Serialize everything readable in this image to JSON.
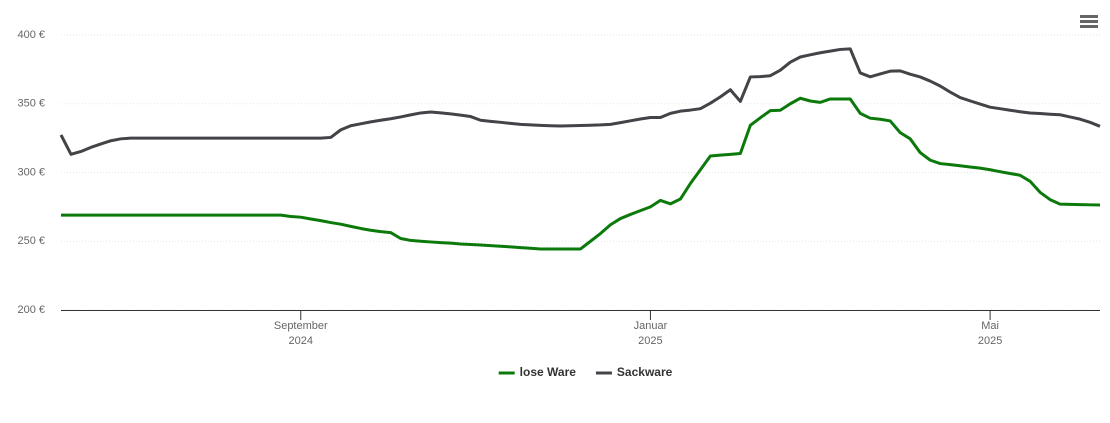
{
  "chart_data": {
    "type": "line",
    "categories": [
      null,
      null,
      null,
      null,
      null,
      null,
      null,
      null,
      null,
      null,
      null,
      null,
      null,
      null,
      null,
      null,
      null,
      null,
      null,
      null,
      null,
      null,
      null,
      null,
      "September 2024",
      null,
      null,
      null,
      null,
      null,
      null,
      null,
      null,
      null,
      null,
      null,
      null,
      null,
      null,
      null,
      null,
      null,
      null,
      null,
      null,
      null,
      null,
      null,
      null,
      null,
      null,
      null,
      null,
      null,
      null,
      null,
      null,
      null,
      null,
      "Januar 2025",
      null,
      null,
      null,
      null,
      null,
      null,
      null,
      null,
      null,
      null,
      null,
      null,
      null,
      null,
      null,
      null,
      null,
      null,
      null,
      null,
      null,
      null,
      null,
      null,
      null,
      null,
      null,
      null,
      null,
      null,
      null,
      null,
      null,
      "Mai 2025",
      null,
      null,
      null,
      null,
      null,
      null,
      null,
      null,
      null,
      null,
      null
    ],
    "series": [
      {
        "name": "lose Ware",
        "color": "#0b7a0b",
        "values": [
          269,
          269,
          269,
          269,
          269,
          269,
          269,
          269,
          269,
          269,
          269,
          269,
          269,
          269,
          269,
          269,
          269,
          269,
          269,
          269,
          269,
          269,
          269,
          268,
          267.5,
          266.2,
          265,
          263.6,
          262.4,
          260.8,
          259.3,
          258,
          257,
          256.3,
          252,
          250.6,
          250,
          249.5,
          249,
          248.6,
          248,
          247.6,
          247.3,
          246.8,
          246.4,
          245.9,
          245.4,
          244.9,
          244.4,
          244.4,
          244.4,
          244.4,
          244.4,
          250,
          255.6,
          262,
          266.5,
          269.5,
          272.3,
          275,
          279.7,
          277.2,
          280.7,
          292,
          302,
          312,
          312.6,
          313.2,
          313.8,
          334.3,
          339.8,
          345,
          345.3,
          350,
          354,
          352,
          351,
          353.5,
          353.5,
          353.5,
          343,
          339.5,
          338.7,
          337.5,
          329,
          324.5,
          314.5,
          309,
          306.5,
          305.7,
          304.9,
          304,
          303.2,
          302,
          300.6,
          299.3,
          298,
          293.6,
          285.6,
          280.3,
          277,
          276.8,
          276.6,
          276.5,
          276.4
        ]
      },
      {
        "name": "Sackware",
        "color": "#434348",
        "values": [
          327.3,
          313.2,
          315.3,
          318.3,
          320.8,
          323.1,
          324.5,
          325,
          325,
          325,
          325,
          325,
          325,
          325,
          325,
          325,
          325,
          325,
          325,
          325,
          325,
          325,
          325,
          325,
          325,
          325,
          325,
          325.5,
          331,
          334,
          335.4,
          336.8,
          338,
          339.1,
          340.4,
          341.9,
          343.3,
          344,
          343.4,
          342.6,
          341.7,
          340.7,
          338,
          337.2,
          336.5,
          335.7,
          335,
          334.6,
          334.3,
          334,
          333.8,
          334,
          334.2,
          334.4,
          334.6,
          335,
          336.3,
          337.6,
          338.9,
          340,
          340,
          343,
          344.6,
          345.4,
          346.4,
          350.4,
          355,
          360.2,
          351.7,
          369.5,
          369.7,
          370.4,
          374.4,
          380.2,
          384,
          385.6,
          387.1,
          388.3,
          389.5,
          389.9,
          372.4,
          369.6,
          371.7,
          373.7,
          373.9,
          371.5,
          369.5,
          366.5,
          362.9,
          358.5,
          354.5,
          352.1,
          349.8,
          347.5,
          346.4,
          345.3,
          344.2,
          343.3,
          342.9,
          342.4,
          342,
          340.4,
          338.8,
          336.5,
          333.6
        ]
      }
    ],
    "ylim": [
      200,
      400
    ],
    "yticks": [
      {
        "value": 200,
        "label": "200 €"
      },
      {
        "value": 250,
        "label": "250 €"
      },
      {
        "value": 300,
        "label": "300 €"
      },
      {
        "value": 350,
        "label": "350 €"
      },
      {
        "value": 400,
        "label": "400 €"
      }
    ],
    "grid": true
  }
}
